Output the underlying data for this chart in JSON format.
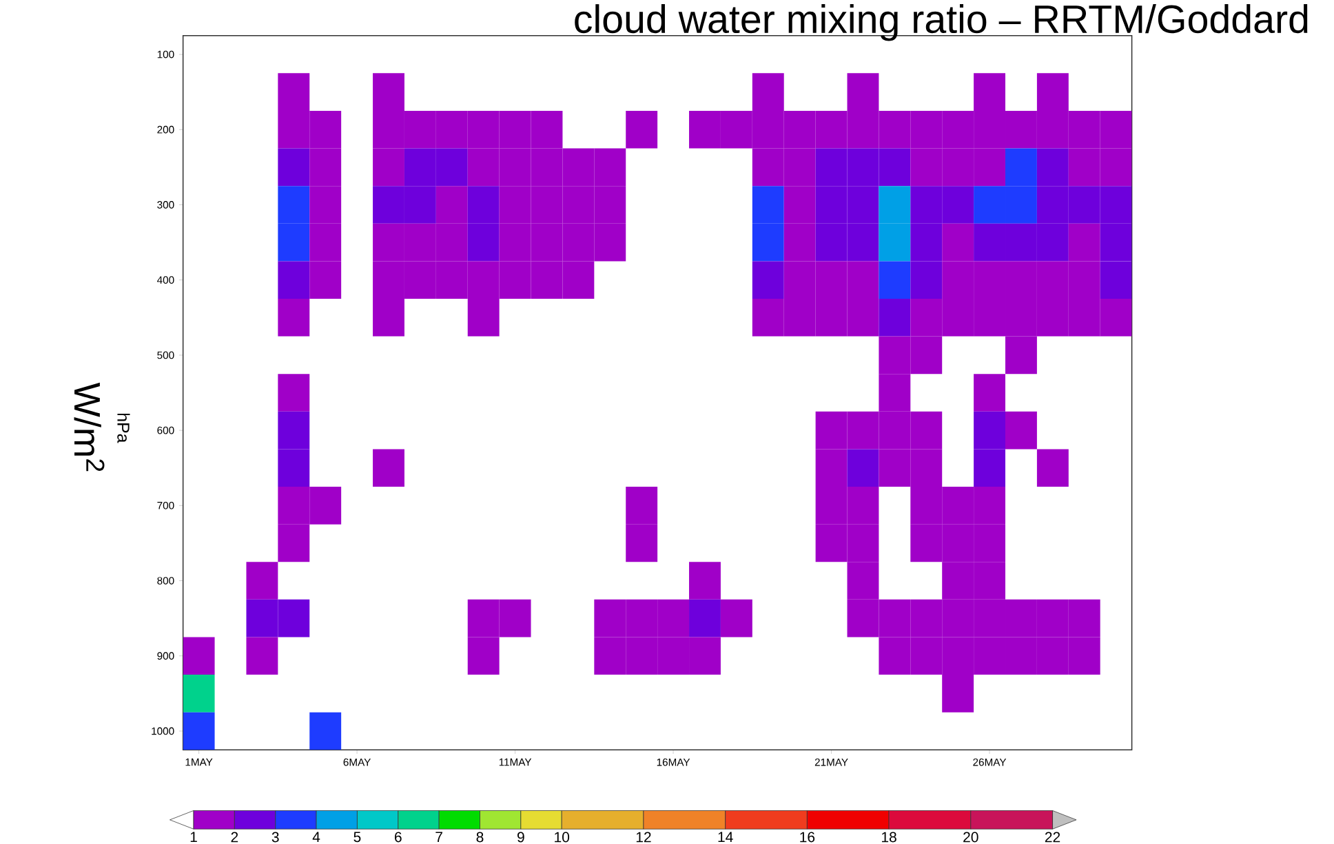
{
  "chart_data": {
    "type": "heatmap",
    "title": "cloud water mixing ratio – RRTM/Goddard",
    "ylabel": "hPa",
    "annotations": [
      "W/m$^{2}$"
    ],
    "categories": [
      "1MAY",
      null,
      null,
      null,
      null,
      "6MAY",
      null,
      null,
      null,
      null,
      "11MAY",
      null,
      null,
      null,
      null,
      "16MAY",
      null,
      null,
      null,
      null,
      "21MAY",
      null,
      null,
      null,
      null,
      "26MAY",
      null,
      null,
      null,
      null
    ],
    "y_categories": [
      "100",
      null,
      "200",
      null,
      "300",
      null,
      "400",
      null,
      "500",
      null,
      "600",
      null,
      "700",
      null,
      "800",
      null,
      "900",
      null,
      "1000"
    ],
    "cells": [
      [
        null,
        null,
        null,
        null,
        null,
        null,
        null,
        null,
        null,
        null,
        null,
        null,
        null,
        null,
        null,
        null,
        null,
        null,
        null,
        null,
        null,
        null,
        null,
        null,
        null,
        null,
        null,
        null,
        null,
        null
      ],
      [
        null,
        null,
        null,
        1.5,
        null,
        null,
        1.5,
        null,
        null,
        null,
        null,
        null,
        null,
        null,
        null,
        null,
        null,
        null,
        1.5,
        null,
        null,
        1.5,
        null,
        null,
        null,
        1.5,
        null,
        1.5,
        null,
        null
      ],
      [
        null,
        null,
        null,
        1.5,
        1.5,
        null,
        1.5,
        1.5,
        1.5,
        1.5,
        1.5,
        1.5,
        null,
        null,
        1.5,
        null,
        1.5,
        1.5,
        1.5,
        1.5,
        1.5,
        1.5,
        1.5,
        1.5,
        1.5,
        1.5,
        1.5,
        1.5,
        1.5,
        1.5
      ],
      [
        null,
        null,
        null,
        2.5,
        1.5,
        null,
        1.5,
        2.5,
        2.5,
        1.5,
        1.5,
        1.5,
        1.5,
        1.5,
        null,
        null,
        null,
        null,
        1.5,
        1.5,
        2.5,
        2.5,
        2.5,
        1.5,
        1.5,
        1.5,
        3.5,
        2.5,
        1.5,
        1.5
      ],
      [
        null,
        null,
        null,
        3.5,
        1.5,
        null,
        2.5,
        2.5,
        1.5,
        2.5,
        1.5,
        1.5,
        1.5,
        1.5,
        null,
        null,
        null,
        null,
        3.5,
        1.5,
        2.5,
        2.5,
        4.5,
        2.5,
        2.5,
        3.5,
        3.5,
        2.5,
        2.5,
        2.5
      ],
      [
        null,
        null,
        null,
        3.5,
        1.5,
        null,
        1.5,
        1.5,
        1.5,
        2.5,
        1.5,
        1.5,
        1.5,
        1.5,
        null,
        null,
        null,
        null,
        3.5,
        1.5,
        2.5,
        2.5,
        4.5,
        2.5,
        1.5,
        2.5,
        2.5,
        2.5,
        1.5,
        2.5
      ],
      [
        null,
        null,
        null,
        2.5,
        1.5,
        null,
        1.5,
        1.5,
        1.5,
        1.5,
        1.5,
        1.5,
        1.5,
        null,
        null,
        null,
        null,
        null,
        2.5,
        1.5,
        1.5,
        1.5,
        3.5,
        2.5,
        1.5,
        1.5,
        1.5,
        1.5,
        1.5,
        2.5
      ],
      [
        null,
        null,
        null,
        1.5,
        null,
        null,
        1.5,
        null,
        null,
        1.5,
        null,
        null,
        null,
        null,
        null,
        null,
        null,
        null,
        1.5,
        1.5,
        1.5,
        1.5,
        2.5,
        1.5,
        1.5,
        1.5,
        1.5,
        1.5,
        1.5,
        1.5
      ],
      [
        null,
        null,
        null,
        null,
        null,
        null,
        null,
        null,
        null,
        null,
        null,
        null,
        null,
        null,
        null,
        null,
        null,
        null,
        null,
        null,
        null,
        null,
        1.5,
        1.5,
        null,
        null,
        1.5,
        null,
        null,
        null
      ],
      [
        null,
        null,
        null,
        1.5,
        null,
        null,
        null,
        null,
        null,
        null,
        null,
        null,
        null,
        null,
        null,
        null,
        null,
        null,
        null,
        null,
        null,
        null,
        1.5,
        null,
        null,
        1.5,
        null,
        null,
        null,
        null
      ],
      [
        null,
        null,
        null,
        2.5,
        null,
        null,
        null,
        null,
        null,
        null,
        null,
        null,
        null,
        null,
        null,
        null,
        null,
        null,
        null,
        null,
        1.5,
        1.5,
        1.5,
        1.5,
        null,
        2.5,
        1.5,
        null,
        null,
        null
      ],
      [
        null,
        null,
        null,
        2.5,
        null,
        null,
        1.5,
        null,
        null,
        null,
        null,
        null,
        null,
        null,
        null,
        null,
        null,
        null,
        null,
        null,
        1.5,
        2.5,
        1.5,
        1.5,
        null,
        2.5,
        null,
        1.5,
        null,
        null
      ],
      [
        null,
        null,
        null,
        1.5,
        1.5,
        null,
        null,
        null,
        null,
        null,
        null,
        null,
        null,
        null,
        1.5,
        null,
        null,
        null,
        null,
        null,
        1.5,
        1.5,
        null,
        1.5,
        1.5,
        1.5,
        null,
        null,
        null,
        null
      ],
      [
        null,
        null,
        null,
        1.5,
        null,
        null,
        null,
        null,
        null,
        null,
        null,
        null,
        null,
        null,
        1.5,
        null,
        null,
        null,
        null,
        null,
        1.5,
        1.5,
        null,
        1.5,
        1.5,
        1.5,
        null,
        null,
        null,
        null
      ],
      [
        null,
        null,
        1.5,
        null,
        null,
        null,
        null,
        null,
        null,
        null,
        null,
        null,
        null,
        null,
        null,
        null,
        1.5,
        null,
        null,
        null,
        null,
        1.5,
        null,
        null,
        1.5,
        1.5,
        null,
        null,
        null,
        null
      ],
      [
        null,
        null,
        2.5,
        2.5,
        null,
        null,
        null,
        null,
        null,
        1.5,
        1.5,
        null,
        null,
        1.5,
        1.5,
        1.5,
        2.5,
        1.5,
        null,
        null,
        null,
        1.5,
        1.5,
        1.5,
        1.5,
        1.5,
        1.5,
        1.5,
        1.5,
        null
      ],
      [
        1.5,
        null,
        1.5,
        null,
        null,
        null,
        null,
        null,
        null,
        1.5,
        null,
        null,
        null,
        1.5,
        1.5,
        1.5,
        1.5,
        null,
        null,
        null,
        null,
        null,
        1.5,
        1.5,
        1.5,
        1.5,
        1.5,
        1.5,
        1.5,
        null
      ],
      [
        6.5,
        null,
        null,
        null,
        null,
        null,
        null,
        null,
        null,
        null,
        null,
        null,
        null,
        null,
        null,
        null,
        null,
        null,
        null,
        null,
        null,
        null,
        null,
        null,
        1.5,
        null,
        null,
        null,
        null,
        null
      ],
      [
        3.5,
        null,
        null,
        null,
        3.5,
        null,
        null,
        null,
        null,
        null,
        null,
        null,
        null,
        null,
        null,
        null,
        null,
        null,
        null,
        null,
        null,
        null,
        null,
        null,
        null,
        null,
        null,
        null,
        null,
        null
      ]
    ],
    "clim": [
      1,
      22
    ],
    "cticks": [
      1,
      2,
      3,
      4,
      5,
      6,
      7,
      8,
      9,
      10,
      12,
      14,
      16,
      18,
      20,
      22
    ],
    "colors": [
      "#a000c8",
      "#6e00dc",
      "#1e3cff",
      "#00a0e6",
      "#00c8c8",
      "#00d28c",
      "#00dc00",
      "#a0e632",
      "#e6dc32",
      "#e6af2d",
      "#f08228",
      "#f03c1e",
      "#f00000",
      "#dc0a3c",
      "#c8145a"
    ]
  }
}
